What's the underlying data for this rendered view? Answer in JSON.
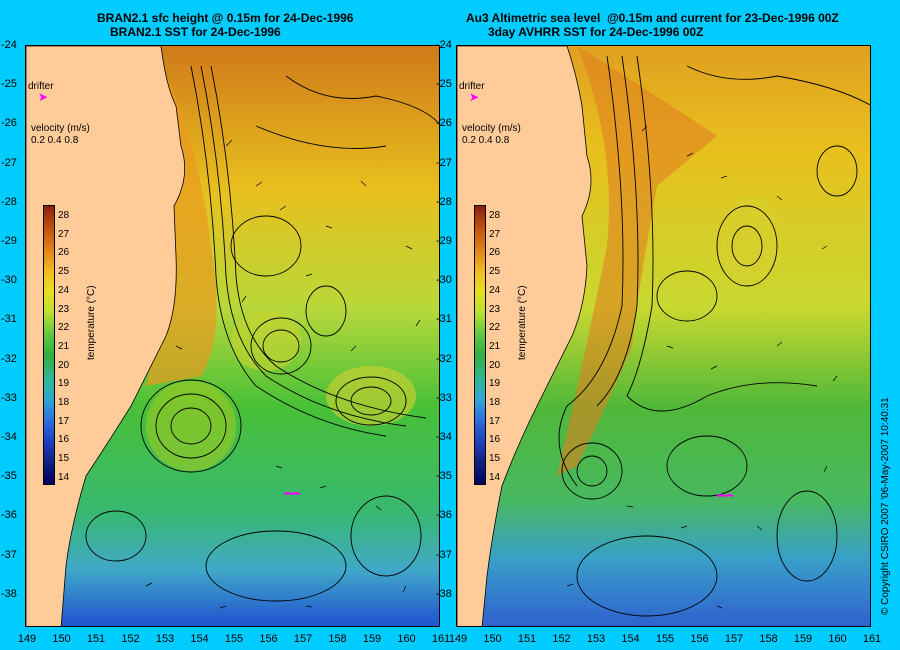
{
  "titles": {
    "left_line1": "BRAN2.1 sfc height @ 0.15m for 24-Dec-1996",
    "left_line2": "BRAN2.1 SST for 24-Dec-1996",
    "right_line1": "Au3 Altimetric sea level  @0.15m and current for 23-Dec-1996 00Z",
    "right_line2": "3day AVHRR SST for 24-Dec-1996 00Z"
  },
  "panel_labels": {
    "drifter": "drifter",
    "velocity_title": "velocity (m/s)",
    "velocity_scale": "0.2 0.4 0.8",
    "temperature_label": "temperature (°C)"
  },
  "colorbar_ticks": [
    "28",
    "27",
    "26",
    "25",
    "24",
    "23",
    "22",
    "21",
    "20",
    "19",
    "18",
    "17",
    "16",
    "15",
    "14"
  ],
  "lat_labels": [
    "-24",
    "-25",
    "-26",
    "-27",
    "-28",
    "-29",
    "-30",
    "-31",
    "-32",
    "-33",
    "-34",
    "-35",
    "-36",
    "-37",
    "-38"
  ],
  "lon_labels_left": [
    "149",
    "150",
    "151",
    "152",
    "153",
    "154",
    "155",
    "156",
    "157",
    "158",
    "159",
    "160",
    "161"
  ],
  "lon_labels_right": [
    "149",
    "150",
    "151",
    "152",
    "153",
    "154",
    "155",
    "156",
    "157",
    "158",
    "159",
    "160",
    "161"
  ],
  "copyright": "© Copyright CSIRO 2007 '06-May-2007 10:40:31",
  "colors": {
    "background": "#00ccff",
    "land": "#ffcc99"
  }
}
